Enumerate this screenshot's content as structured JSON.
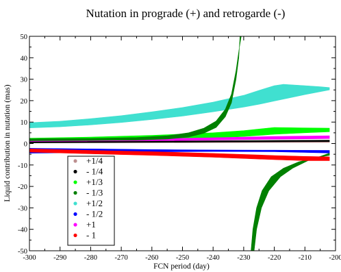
{
  "chart_data": {
    "type": "area",
    "title": "Nutation in prograde (+) and retrogarde (-)",
    "xlabel": "FCN period (day)",
    "ylabel": "Liquid contribution in nutation (mas)",
    "xlim": [
      -300,
      -200
    ],
    "ylim": [
      -50,
      50
    ],
    "xticks": [
      -300,
      -290,
      -280,
      -270,
      -260,
      -250,
      -240,
      -230,
      -220,
      -210,
      -200
    ],
    "yticks": [
      -50,
      -40,
      -30,
      -20,
      -10,
      0,
      10,
      20,
      30,
      40,
      50
    ],
    "grid": false,
    "legend_position": "bottom-left",
    "series": [
      {
        "name": "+1/4",
        "color": "#bc8f8f",
        "lower": [
          [
            -300,
            0.3
          ],
          [
            -202,
            0.5
          ]
        ],
        "upper": [
          [
            -300,
            0.5
          ],
          [
            -202,
            0.7
          ]
        ]
      },
      {
        "name": "- 1/4",
        "color": "#000000",
        "lower": [
          [
            -300,
            0.3
          ],
          [
            -202,
            0.9
          ]
        ],
        "upper": [
          [
            -300,
            0.8
          ],
          [
            -202,
            1.6
          ]
        ]
      },
      {
        "name": "+1/3",
        "color": "#00ff00",
        "lower": [
          [
            -300,
            1.0
          ],
          [
            -280,
            1.3
          ],
          [
            -260,
            1.8
          ],
          [
            -240,
            2.6
          ],
          [
            -230,
            3.3
          ],
          [
            -220,
            4.3
          ],
          [
            -210,
            5.0
          ],
          [
            -202,
            5.5
          ]
        ],
        "upper": [
          [
            -300,
            2.5
          ],
          [
            -280,
            3.0
          ],
          [
            -260,
            3.8
          ],
          [
            -240,
            5.0
          ],
          [
            -230,
            6.0
          ],
          [
            -220,
            7.5
          ],
          [
            -210,
            7.3
          ],
          [
            -202,
            7.2
          ]
        ]
      },
      {
        "name": "- 1/3",
        "color": "#008000",
        "left_branch": {
          "lower": [
            [
              -300,
              1.3
            ],
            [
              -280,
              1.4
            ],
            [
              -265,
              1.6
            ],
            [
              -255,
              2.1
            ],
            [
              -248,
              3.0
            ],
            [
              -243,
              4.8
            ],
            [
              -239,
              7.5
            ],
            [
              -236,
              12.5
            ],
            [
              -234,
              19.0
            ],
            [
              -232.5,
              30.0
            ],
            [
              -231.6,
              40.0
            ],
            [
              -231.2,
              50.0
            ]
          ],
          "upper": [
            [
              -300,
              2.2
            ],
            [
              -280,
              2.4
            ],
            [
              -265,
              2.8
            ],
            [
              -255,
              3.6
            ],
            [
              -248,
              5.0
            ],
            [
              -243,
              7.2
            ],
            [
              -239,
              10.5
            ],
            [
              -236,
              16.0
            ],
            [
              -234,
              23.0
            ],
            [
              -232.5,
              34.0
            ],
            [
              -231.5,
              44.0
            ],
            [
              -230.8,
              50.0
            ]
          ]
        },
        "right_branch": {
          "lower": [
            [
              -227.6,
              -50.0
            ],
            [
              -227.0,
              -40.0
            ],
            [
              -225.8,
              -30.0
            ],
            [
              -224.0,
              -22.0
            ],
            [
              -221.0,
              -15.5
            ],
            [
              -217.0,
              -11.5
            ],
            [
              -212.0,
              -8.5
            ],
            [
              -206.0,
              -6.5
            ],
            [
              -202.0,
              -5.5
            ]
          ],
          "upper": [
            [
              -226.6,
              -50.0
            ],
            [
              -225.8,
              -40.0
            ],
            [
              -224.2,
              -30.0
            ],
            [
              -221.8,
              -22.0
            ],
            [
              -218.0,
              -15.5
            ],
            [
              -214.0,
              -11.5
            ],
            [
              -209.0,
              -8.0
            ],
            [
              -205.0,
              -6.0
            ],
            [
              -202.0,
              -4.5
            ]
          ]
        }
      },
      {
        "name": "+1/2",
        "color": "#40e0d0",
        "lower": [
          [
            -300,
            7.3
          ],
          [
            -290,
            7.8
          ],
          [
            -280,
            8.7
          ],
          [
            -270,
            9.8
          ],
          [
            -260,
            11.2
          ],
          [
            -250,
            12.8
          ],
          [
            -240,
            14.8
          ],
          [
            -230,
            17.0
          ],
          [
            -225,
            18.3
          ],
          [
            -220,
            19.8
          ],
          [
            -215,
            21.3
          ],
          [
            -210,
            22.8
          ],
          [
            -205,
            24.2
          ],
          [
            -202,
            25.0
          ]
        ],
        "upper": [
          [
            -300,
            9.7
          ],
          [
            -290,
            10.4
          ],
          [
            -280,
            11.6
          ],
          [
            -270,
            13.0
          ],
          [
            -260,
            14.8
          ],
          [
            -250,
            16.8
          ],
          [
            -240,
            19.3
          ],
          [
            -230,
            22.5
          ],
          [
            -225,
            24.8
          ],
          [
            -220,
            27.0
          ],
          [
            -217,
            27.6
          ],
          [
            -210,
            27.0
          ],
          [
            -205,
            26.5
          ],
          [
            -202,
            26.1
          ]
        ]
      },
      {
        "name": "- 1/2",
        "color": "#0000ff",
        "lower": [
          [
            -300,
            -4.5
          ],
          [
            -280,
            -4.2
          ],
          [
            -260,
            -3.9
          ],
          [
            -240,
            -3.7
          ],
          [
            -220,
            -3.8
          ],
          [
            -202,
            -4.4
          ]
        ],
        "upper": [
          [
            -300,
            -2.2
          ],
          [
            -280,
            -2.5
          ],
          [
            -260,
            -2.8
          ],
          [
            -240,
            -3.0
          ],
          [
            -220,
            -3.1
          ],
          [
            -202,
            -3.2
          ]
        ]
      },
      {
        "name": "+1",
        "color": "#ff00ff",
        "lower": [
          [
            -300,
            0.7
          ],
          [
            -280,
            0.9
          ],
          [
            -260,
            1.2
          ],
          [
            -240,
            1.6
          ],
          [
            -220,
            2.0
          ],
          [
            -202,
            2.3
          ]
        ],
        "upper": [
          [
            -300,
            1.5
          ],
          [
            -280,
            1.8
          ],
          [
            -260,
            2.2
          ],
          [
            -240,
            2.7
          ],
          [
            -220,
            3.3
          ],
          [
            -202,
            3.6
          ]
        ]
      },
      {
        "name": "- 1",
        "color": "#ff0000",
        "lower": [
          [
            -300,
            -4.0
          ],
          [
            -280,
            -4.8
          ],
          [
            -260,
            -5.5
          ],
          [
            -240,
            -6.4
          ],
          [
            -220,
            -7.5
          ],
          [
            -210,
            -8.0
          ],
          [
            -202,
            -8.0
          ]
        ],
        "upper": [
          [
            -300,
            -2.5
          ],
          [
            -280,
            -3.2
          ],
          [
            -260,
            -3.8
          ],
          [
            -240,
            -4.6
          ],
          [
            -220,
            -5.6
          ],
          [
            -210,
            -6.0
          ],
          [
            -202,
            -6.2
          ]
        ]
      }
    ]
  }
}
